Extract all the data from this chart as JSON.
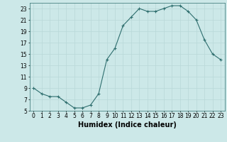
{
  "x": [
    0,
    1,
    2,
    3,
    4,
    5,
    6,
    7,
    8,
    9,
    10,
    11,
    12,
    13,
    14,
    15,
    16,
    17,
    18,
    19,
    20,
    21,
    22,
    23
  ],
  "y": [
    9,
    8,
    7.5,
    7.5,
    6.5,
    5.5,
    5.5,
    6,
    8,
    14,
    16,
    20,
    21.5,
    23,
    22.5,
    22.5,
    23,
    23.5,
    23.5,
    22.5,
    21,
    17.5,
    15,
    14
  ],
  "line_color": "#2e6e6e",
  "marker": "+",
  "bg_color": "#cce8e8",
  "grid_color": "#b8d8d8",
  "xlabel": "Humidex (Indice chaleur)",
  "xlim": [
    -0.5,
    23.5
  ],
  "ylim": [
    5,
    24
  ],
  "yticks": [
    5,
    7,
    9,
    11,
    13,
    15,
    17,
    19,
    21,
    23
  ],
  "xticks": [
    0,
    1,
    2,
    3,
    4,
    5,
    6,
    7,
    8,
    9,
    10,
    11,
    12,
    13,
    14,
    15,
    16,
    17,
    18,
    19,
    20,
    21,
    22,
    23
  ],
  "tick_fontsize": 5.5,
  "label_fontsize": 7,
  "marker_size": 3,
  "line_width": 0.8
}
